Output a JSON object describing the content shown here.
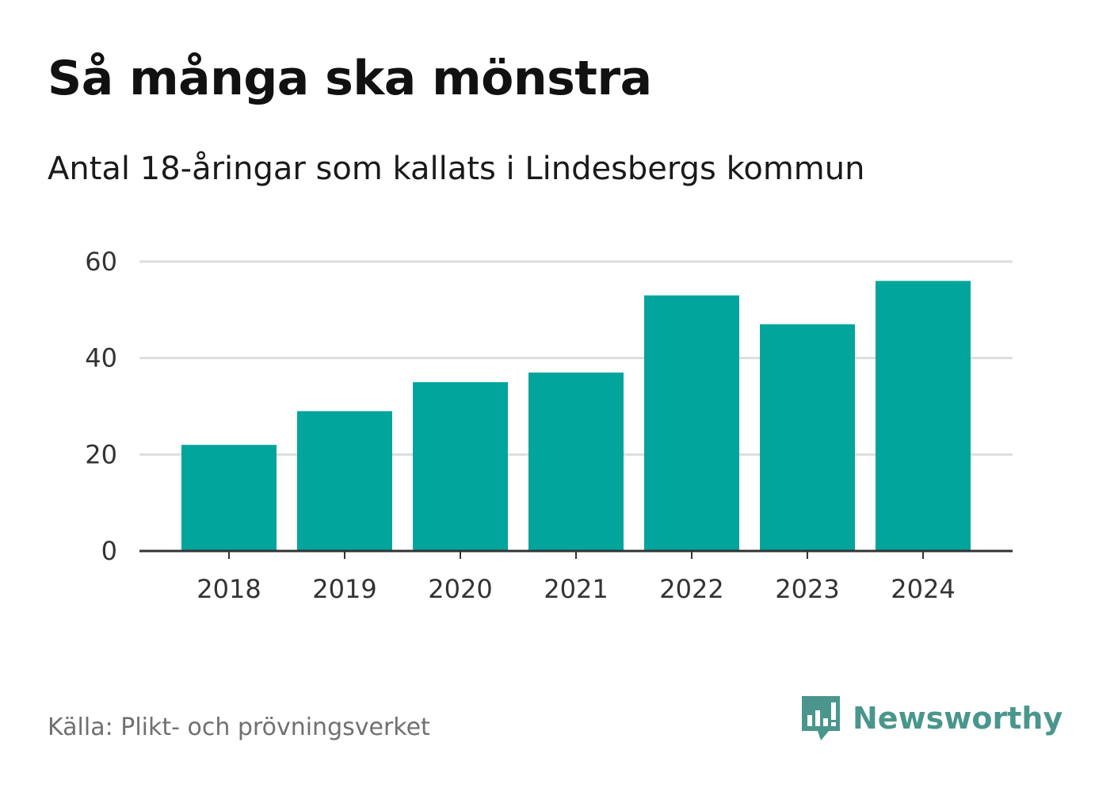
{
  "title": "Så många ska mönstra",
  "subtitle": "Antal 18-åringar som kallats i Lindesbergs kommun",
  "source": "Källa: Plikt- och prövningsverket",
  "brand": "Newsworthy",
  "colors": {
    "bar": "#02a59b",
    "grid": "#dddddd",
    "axis": "#333333",
    "brand": "#4a968d"
  },
  "chart_data": {
    "type": "bar",
    "title": "Så många ska mönstra",
    "xlabel": "",
    "ylabel": "",
    "categories": [
      "2018",
      "2019",
      "2020",
      "2021",
      "2022",
      "2023",
      "2024"
    ],
    "values": [
      22,
      29,
      35,
      37,
      53,
      47,
      56
    ],
    "ylim": [
      0,
      60
    ],
    "yticks": [
      0,
      20,
      40,
      60
    ],
    "ytick_labels": [
      "0",
      "20",
      "40",
      "60"
    ],
    "grid": true
  }
}
